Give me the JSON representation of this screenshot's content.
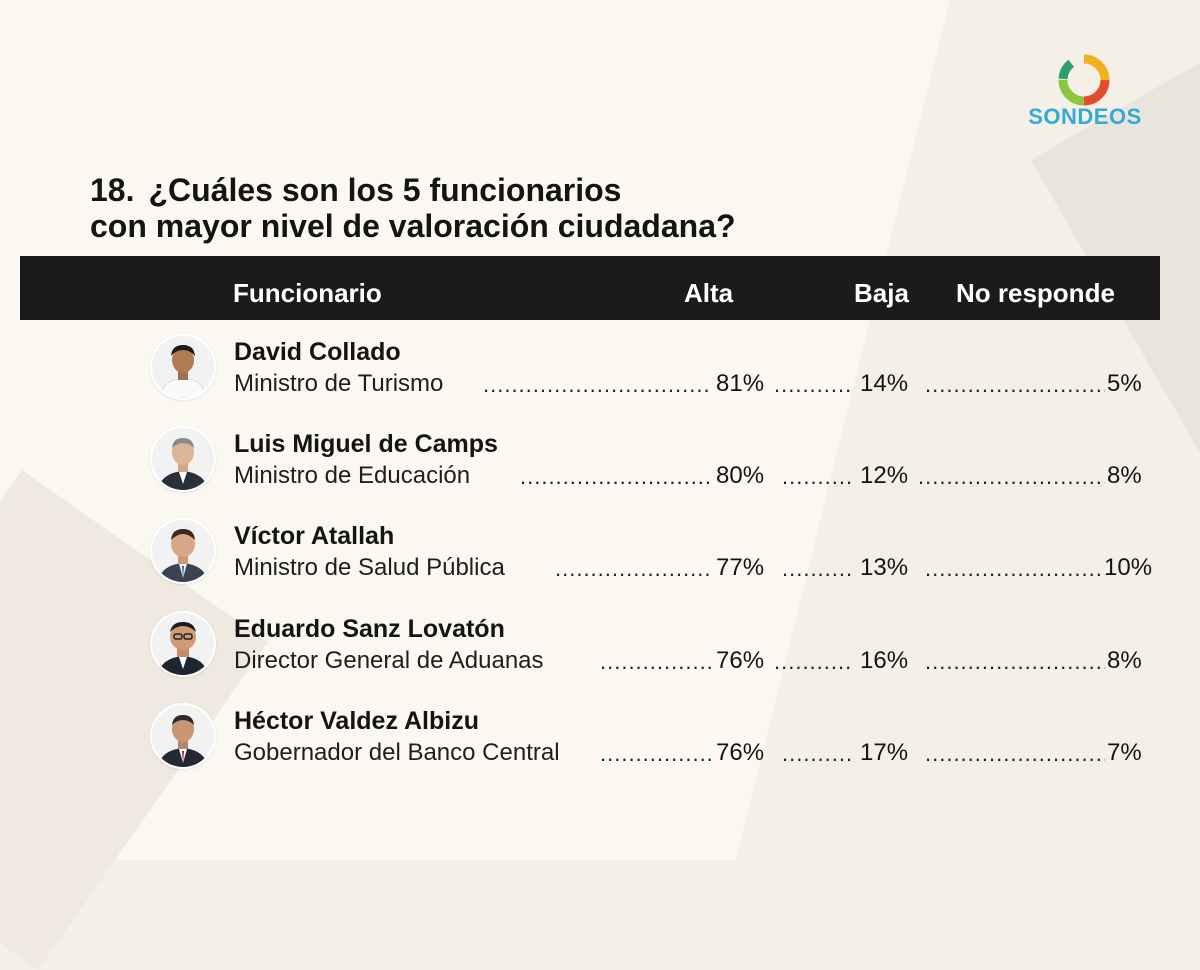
{
  "logo": {
    "text": "SONDEOS"
  },
  "question": {
    "number": "18.",
    "line1": "¿Cuáles son los 5 funcionarios",
    "line2": "con mayor nivel de valoración ciudadana?"
  },
  "table": {
    "headers": {
      "funcionario": "Funcionario",
      "alta": "Alta",
      "baja": "Baja",
      "no_responde": "No responde"
    },
    "rows": [
      {
        "name": "David Collado",
        "role": "Ministro de Turismo",
        "alta": "81%",
        "baja": "14%",
        "no_responde": "5%"
      },
      {
        "name": "Luis Miguel de Camps",
        "role": "Ministro de Educación",
        "alta": "80%",
        "baja": "12%",
        "no_responde": "8%"
      },
      {
        "name": "Víctor Atallah",
        "role": "Ministro de Salud Pública",
        "alta": "77%",
        "baja": "13%",
        "no_responde": "10%"
      },
      {
        "name": "Eduardo Sanz Lovatón",
        "role": "Director General de Aduanas",
        "alta": "76%",
        "baja": "16%",
        "no_responde": "8%"
      },
      {
        "name": "Héctor Valdez Albizu",
        "role": "Gobernador del Banco Central",
        "alta": "76%",
        "baja": "17%",
        "no_responde": "7%"
      }
    ]
  }
}
